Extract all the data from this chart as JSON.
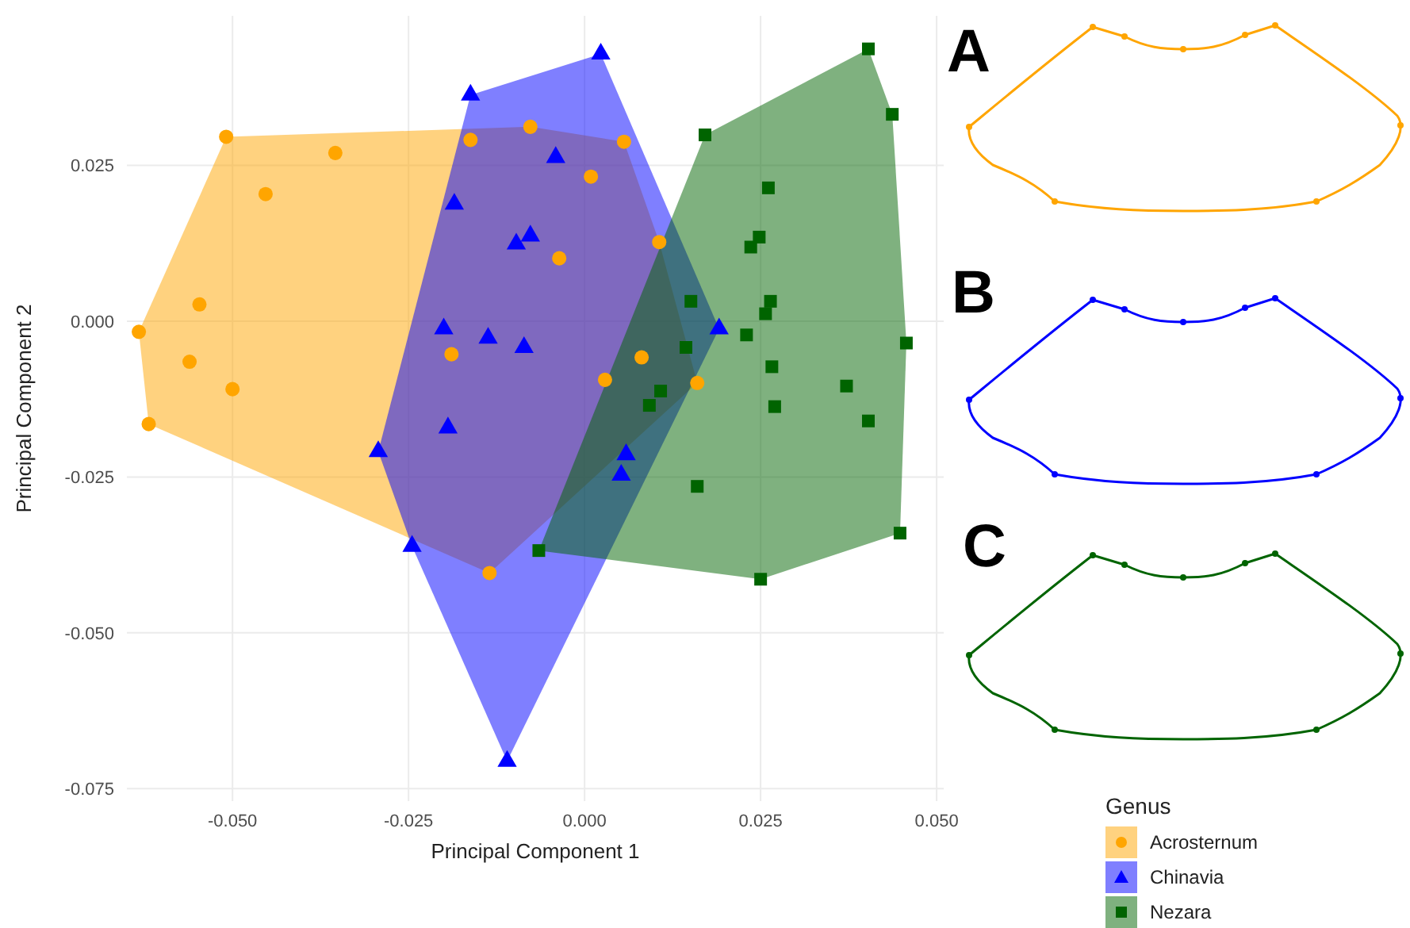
{
  "chart_data": {
    "type": "scatter",
    "xlabel": "Principal Component 1",
    "ylabel": "Principal Component 2",
    "legend_title": "Genus",
    "legend": "bottom right",
    "grid": true,
    "xlim": [
      -0.065,
      0.051
    ],
    "ylim": [
      -0.077,
      0.049
    ],
    "xticks": [
      {
        "value": -0.05,
        "label": "-0.050"
      },
      {
        "value": -0.025,
        "label": "-0.025"
      },
      {
        "value": 0,
        "label": "0.000"
      },
      {
        "value": 0.025,
        "label": "0.025"
      },
      {
        "value": 0.05,
        "label": "0.050"
      }
    ],
    "yticks": [
      {
        "value": -0.075,
        "label": "-0.075"
      },
      {
        "value": -0.05,
        "label": "-0.050"
      },
      {
        "value": -0.025,
        "label": "-0.025"
      },
      {
        "value": 0,
        "label": "0.000"
      },
      {
        "value": 0.025,
        "label": "0.025"
      }
    ],
    "annotations": [
      "A",
      "B",
      "C"
    ],
    "series": [
      {
        "name": "Acrosternum",
        "color": "#ffa500",
        "marker": "circle",
        "x": [
          -0.0509,
          -0.0354,
          -0.0453,
          -0.0547,
          -0.0633,
          -0.0561,
          -0.05,
          -0.0619,
          -0.0077,
          -0.0162,
          -0.0189,
          0.0056,
          0.0009,
          -0.0036,
          0.0106,
          0.0081,
          0.0029,
          0.016,
          -0.0135
        ],
        "values": [
          0.0296,
          0.027,
          0.0204,
          0.0027,
          -0.0017,
          -0.0065,
          -0.0109,
          -0.0165,
          0.0312,
          0.0291,
          -0.0053,
          0.0288,
          0.0232,
          0.0101,
          0.0127,
          -0.0058,
          -0.0094,
          -0.0099,
          -0.0404
        ]
      },
      {
        "name": "Chinavia",
        "color": "#0000ff",
        "marker": "triangle",
        "x": [
          -0.0162,
          -0.0185,
          -0.0097,
          -0.0077,
          -0.02,
          -0.0137,
          -0.0086,
          0.0023,
          -0.0041,
          0.0191,
          -0.0194,
          -0.0293,
          -0.0245,
          -0.011,
          0.0059,
          0.0052
        ],
        "values": [
          0.0363,
          0.0188,
          0.0124,
          0.0137,
          -0.0012,
          -0.0027,
          -0.0042,
          0.0429,
          0.0263,
          -0.0012,
          -0.0171,
          -0.0209,
          -0.0361,
          -0.0706,
          -0.0214,
          -0.0247
        ]
      },
      {
        "name": "Nezara",
        "color": "#006400",
        "marker": "square",
        "x": [
          0.0403,
          0.0437,
          0.0171,
          0.0261,
          0.0248,
          0.0236,
          0.0151,
          0.0264,
          0.0257,
          0.023,
          0.0457,
          0.0144,
          0.0266,
          0.0372,
          0.0108,
          0.0092,
          0.027,
          0.0403,
          0.016,
          -0.0065,
          0.025,
          0.0448
        ],
        "values": [
          0.0437,
          0.0332,
          0.0299,
          0.0214,
          0.0135,
          0.0119,
          0.0032,
          0.0032,
          0.0012,
          -0.0022,
          -0.0035,
          -0.0042,
          -0.0073,
          -0.0104,
          -0.0112,
          -0.0135,
          -0.0137,
          -0.016,
          -0.0265,
          -0.0368,
          -0.0414,
          -0.034
        ]
      }
    ]
  }
}
